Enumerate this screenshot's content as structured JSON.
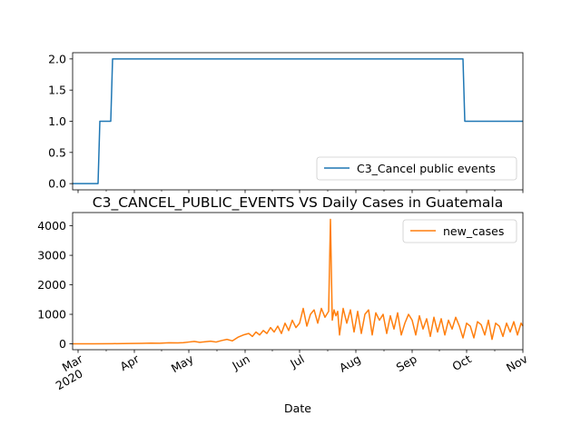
{
  "chart_data": [
    {
      "type": "line",
      "title": "",
      "xlabel": "",
      "ylabel": "",
      "x_range": [
        "2020-02-27",
        "2020-11-01"
      ],
      "ylim": [
        -0.1,
        2.1
      ],
      "yticks": [
        0.0,
        0.5,
        1.0,
        1.5,
        2.0
      ],
      "ytick_labels": [
        "0.0",
        "0.5",
        "1.0",
        "1.5",
        "2.0"
      ],
      "grid": false,
      "legend_position": "lower-right",
      "series": [
        {
          "name": "C3_Cancel public events",
          "color": "#1f77b4",
          "x": [
            "2020-02-27",
            "2020-03-12",
            "2020-03-13",
            "2020-03-19",
            "2020-03-20",
            "2020-09-29",
            "2020-09-30",
            "2020-11-01"
          ],
          "values": [
            0,
            0,
            1,
            1,
            2,
            2,
            1,
            1
          ]
        }
      ]
    },
    {
      "type": "line",
      "title": "C3_CANCEL_PUBLIC_EVENTS VS Daily Cases in Guatemala",
      "xlabel": "Date",
      "ylabel": "",
      "x_range": [
        "2020-02-27",
        "2020-11-01"
      ],
      "ylim": [
        -200,
        4450
      ],
      "yticks": [
        0,
        1000,
        2000,
        3000,
        4000
      ],
      "ytick_labels": [
        "0",
        "1000",
        "2000",
        "3000",
        "4000"
      ],
      "xtick_dates": [
        "2020-03-01",
        "2020-04-01",
        "2020-05-01",
        "2020-06-01",
        "2020-07-01",
        "2020-08-01",
        "2020-09-01",
        "2020-10-01",
        "2020-11-01"
      ],
      "xtick_labels": [
        "Mar",
        "Apr",
        "May",
        "Jun",
        "Jul",
        "Aug",
        "Sep",
        "Oct",
        "Nov"
      ],
      "xtick_year_label": "2020",
      "grid": false,
      "legend_position": "upper-right",
      "series": [
        {
          "name": "new_cases",
          "color": "#ff7f0e",
          "x": [
            "2020-02-27",
            "2020-03-10",
            "2020-03-20",
            "2020-03-30",
            "2020-04-05",
            "2020-04-10",
            "2020-04-15",
            "2020-04-20",
            "2020-04-25",
            "2020-04-28",
            "2020-05-01",
            "2020-05-04",
            "2020-05-07",
            "2020-05-10",
            "2020-05-13",
            "2020-05-16",
            "2020-05-19",
            "2020-05-22",
            "2020-05-25",
            "2020-05-28",
            "2020-05-31",
            "2020-06-03",
            "2020-06-05",
            "2020-06-07",
            "2020-06-09",
            "2020-06-11",
            "2020-06-13",
            "2020-06-15",
            "2020-06-17",
            "2020-06-19",
            "2020-06-21",
            "2020-06-23",
            "2020-06-25",
            "2020-06-27",
            "2020-06-29",
            "2020-07-01",
            "2020-07-03",
            "2020-07-05",
            "2020-07-07",
            "2020-07-09",
            "2020-07-11",
            "2020-07-13",
            "2020-07-15",
            "2020-07-17",
            "2020-07-18",
            "2020-07-19",
            "2020-07-20",
            "2020-07-21",
            "2020-07-22",
            "2020-07-23",
            "2020-07-25",
            "2020-07-27",
            "2020-07-29",
            "2020-07-31",
            "2020-08-02",
            "2020-08-04",
            "2020-08-06",
            "2020-08-08",
            "2020-08-10",
            "2020-08-12",
            "2020-08-14",
            "2020-08-16",
            "2020-08-18",
            "2020-08-20",
            "2020-08-22",
            "2020-08-24",
            "2020-08-26",
            "2020-08-28",
            "2020-08-30",
            "2020-09-01",
            "2020-09-03",
            "2020-09-05",
            "2020-09-07",
            "2020-09-09",
            "2020-09-11",
            "2020-09-13",
            "2020-09-15",
            "2020-09-17",
            "2020-09-19",
            "2020-09-21",
            "2020-09-23",
            "2020-09-25",
            "2020-09-27",
            "2020-09-29",
            "2020-10-01",
            "2020-10-03",
            "2020-10-05",
            "2020-10-07",
            "2020-10-09",
            "2020-10-11",
            "2020-10-13",
            "2020-10-15",
            "2020-10-17",
            "2020-10-19",
            "2020-10-21",
            "2020-10-23",
            "2020-10-25",
            "2020-10-27",
            "2020-10-29",
            "2020-10-31",
            "2020-11-01"
          ],
          "values": [
            0,
            0,
            5,
            10,
            15,
            25,
            20,
            35,
            30,
            40,
            60,
            80,
            50,
            70,
            90,
            60,
            110,
            150,
            100,
            220,
            300,
            350,
            250,
            400,
            300,
            450,
            350,
            550,
            400,
            600,
            350,
            700,
            450,
            800,
            550,
            700,
            1200,
            600,
            1000,
            1150,
            700,
            1200,
            900,
            1100,
            4220,
            800,
            1150,
            950,
            1100,
            300,
            1200,
            700,
            1150,
            400,
            1100,
            350,
            1000,
            1150,
            300,
            1050,
            800,
            1000,
            350,
            950,
            500,
            1050,
            300,
            700,
            1000,
            800,
            300,
            950,
            500,
            850,
            250,
            900,
            400,
            850,
            300,
            800,
            500,
            900,
            600,
            200,
            700,
            600,
            200,
            750,
            650,
            300,
            800,
            150,
            700,
            600,
            250,
            700,
            400,
            750,
            300,
            700,
            600
          ]
        }
      ]
    }
  ]
}
